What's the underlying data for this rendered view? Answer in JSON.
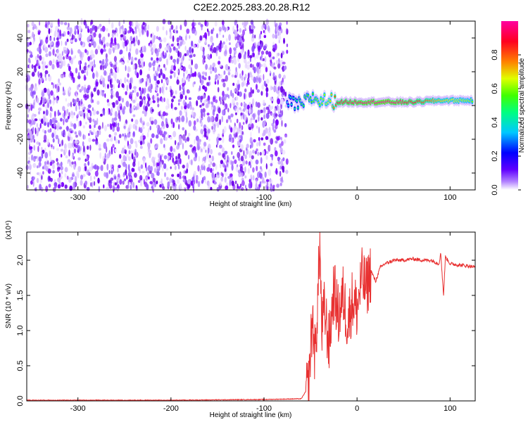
{
  "title": "C2E2.2025.283.20.28.R12",
  "colors": {
    "scatter": "#7a00ff",
    "snr_line": "#e83030",
    "colorbar_stops": [
      "#ff00ff",
      "#ff0040",
      "#ff8000",
      "#ffff00",
      "#00ff00",
      "#00ffff",
      "#0000ff",
      "#ffffff"
    ]
  },
  "chart_data": [
    {
      "type": "heatmap",
      "title": "",
      "xlabel": "Height of straight line (km)",
      "ylabel": "Frequency (Hz)",
      "xlim": [
        -355,
        127
      ],
      "ylim": [
        -50,
        50
      ],
      "x_ticks": [
        -300,
        -200,
        -100,
        0,
        100
      ],
      "y_ticks": [
        -40,
        -20,
        0,
        20,
        40
      ],
      "noise_region": {
        "x_range": [
          -355,
          -75
        ],
        "y_range": [
          -50,
          50
        ],
        "amplitude": 0.15
      },
      "ridge": [
        {
          "x": -75,
          "y": 2,
          "amplitude": 0.35
        },
        {
          "x": -60,
          "y": 0,
          "amplitude": 0.5
        },
        {
          "x": -50,
          "y": 5,
          "amplitude": 0.55
        },
        {
          "x": -40,
          "y": 3,
          "amplitude": 0.6
        },
        {
          "x": -30,
          "y": 3,
          "amplitude": 0.65
        },
        {
          "x": -20,
          "y": 2,
          "amplitude": 0.9
        },
        {
          "x": 0,
          "y": 2,
          "amplitude": 0.95
        },
        {
          "x": 30,
          "y": 2,
          "amplitude": 1.0
        },
        {
          "x": 60,
          "y": 2,
          "amplitude": 0.9
        },
        {
          "x": 90,
          "y": 3,
          "amplitude": 0.7
        },
        {
          "x": 125,
          "y": 3,
          "amplitude": 0.6
        }
      ],
      "colorbar": {
        "label": "Normalized spectral amplitude",
        "ticks": [
          "0.0",
          "0.2",
          "0.4",
          "0.6",
          "0.8"
        ],
        "range": [
          0,
          1
        ]
      }
    },
    {
      "type": "line",
      "title": "",
      "xlabel": "Height of straight line (km)",
      "ylabel": "SNR (10 * v/v)",
      "y_multiplier": "(x10⁴)",
      "xlim": [
        -355,
        127
      ],
      "ylim": [
        0,
        2.4
      ],
      "x_ticks": [
        -300,
        -200,
        -100,
        0,
        100
      ],
      "y_ticks": [
        "0.0",
        "0.5",
        "1.0",
        "1.5",
        "2.0"
      ],
      "series": [
        {
          "x": [
            -355,
            -300,
            -200,
            -100,
            -60,
            -52,
            -48,
            -45,
            -42,
            -40,
            -38,
            -35,
            -30,
            -25,
            -20,
            -15,
            -10,
            -5,
            0,
            5,
            10,
            15,
            20,
            25,
            30,
            40,
            50,
            60,
            70,
            80,
            88,
            90,
            93,
            95,
            100,
            110,
            120,
            127
          ],
          "values": [
            0.01,
            0.01,
            0.01,
            0.02,
            0.03,
            0.2,
            1.2,
            0.6,
            1.5,
            2.3,
            1.0,
            1.3,
            0.8,
            1.6,
            1.2,
            1.5,
            1.1,
            1.45,
            1.3,
            1.75,
            1.6,
            1.85,
            1.7,
            1.9,
            1.95,
            2.0,
            2.0,
            2.02,
            2.0,
            2.0,
            1.95,
            2.1,
            1.5,
            2.05,
            1.95,
            1.93,
            1.92,
            1.9
          ]
        }
      ]
    }
  ]
}
